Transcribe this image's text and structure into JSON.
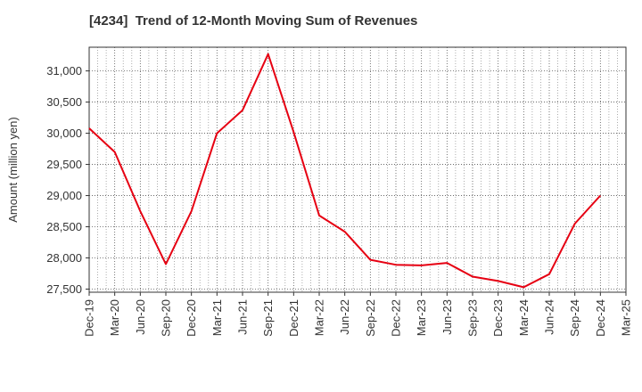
{
  "chart_data": {
    "type": "line",
    "title": "[4234]  Trend of 12-Month Moving Sum of Revenues",
    "xlabel": "",
    "ylabel": "Amount (million yen)",
    "categories": [
      "Dec-19",
      "Mar-20",
      "Jun-20",
      "Sep-20",
      "Dec-20",
      "Mar-21",
      "Jun-21",
      "Sep-21",
      "Dec-21",
      "Mar-22",
      "Jun-22",
      "Sep-22",
      "Dec-22",
      "Mar-23",
      "Jun-23",
      "Sep-23",
      "Dec-23",
      "Mar-24",
      "Jun-24",
      "Sep-24",
      "Dec-24",
      "Mar-25"
    ],
    "y_ticks": [
      "27,500",
      "28,000",
      "28,500",
      "29,000",
      "29,500",
      "30,000",
      "30,500",
      "31,000"
    ],
    "y_tick_values": [
      27500,
      28000,
      28500,
      29000,
      29500,
      30000,
      30500,
      31000
    ],
    "ylim": [
      27450,
      31380
    ],
    "series": [
      {
        "name": "",
        "color": "#e60012",
        "values": [
          30080,
          29700,
          28750,
          27900,
          28750,
          30000,
          30370,
          31270,
          30020,
          28680,
          28420,
          27970,
          27890,
          27880,
          27920,
          27700,
          27630,
          27530,
          27740,
          28550,
          29000,
          null
        ]
      }
    ],
    "grid": true,
    "legend": "none"
  }
}
